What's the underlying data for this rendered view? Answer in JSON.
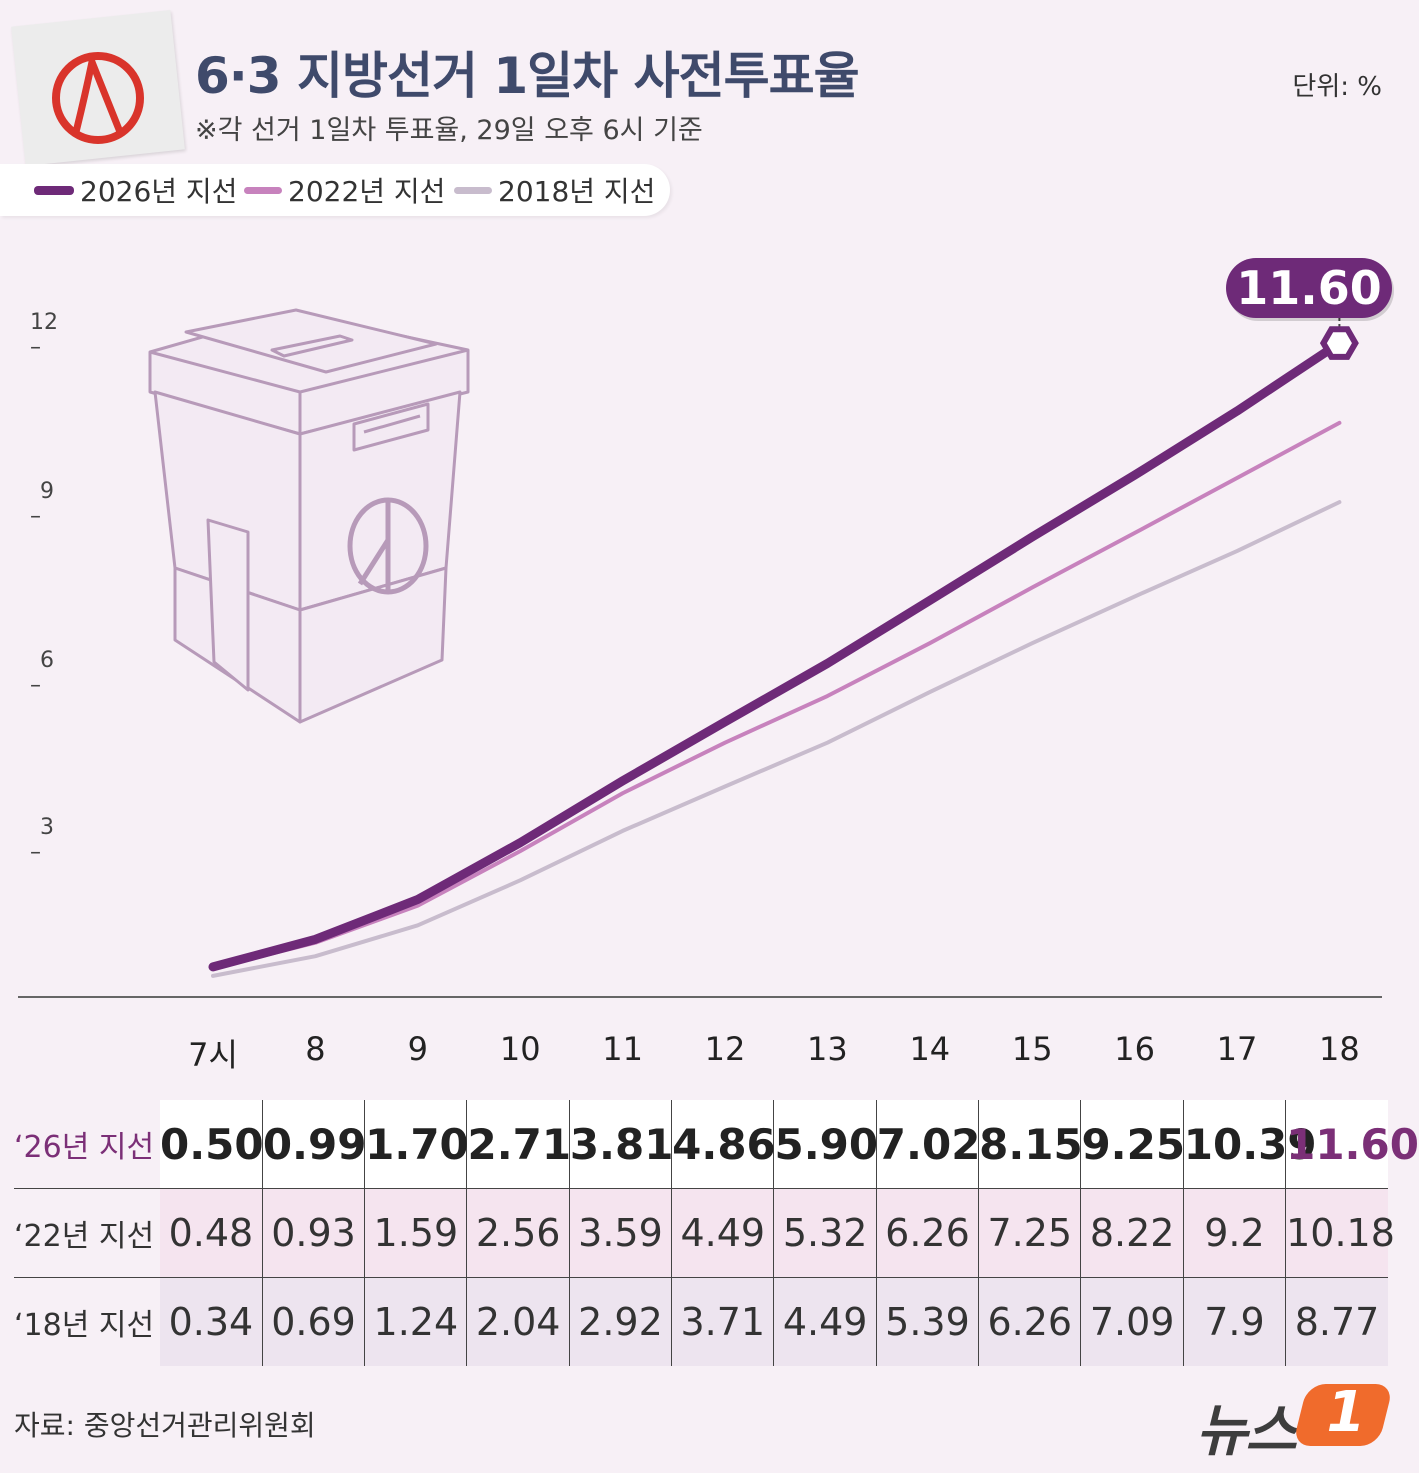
{
  "title": "6·3 지방선거 1일차 사전투표율",
  "subtitle": "※각 선거 1일차 투표율, 29일 오후 6시 기준",
  "unit": "단위: %",
  "legend": [
    {
      "label": "2026년 지선",
      "color": "#6e2a78"
    },
    {
      "label": "2022년 지선",
      "color": "#c782bd"
    },
    {
      "label": "2018년 지선",
      "color": "#c8bccd"
    }
  ],
  "callout": "11.60",
  "chart_data": {
    "type": "line",
    "x": [
      "7시",
      "8",
      "9",
      "10",
      "11",
      "12",
      "13",
      "14",
      "15",
      "16",
      "17",
      "18"
    ],
    "y_ticks": [
      "12",
      "9",
      "6",
      "3"
    ],
    "ylim": [
      0,
      12
    ],
    "series": [
      {
        "name": "2026년 지선",
        "color": "#6e2a78",
        "values": [
          0.5,
          0.99,
          1.7,
          2.71,
          3.81,
          4.86,
          5.9,
          7.02,
          8.15,
          9.25,
          10.39,
          11.6
        ]
      },
      {
        "name": "2022년 지선",
        "color": "#c782bd",
        "values": [
          0.48,
          0.93,
          1.59,
          2.56,
          3.59,
          4.49,
          5.32,
          6.26,
          7.25,
          8.22,
          9.2,
          10.18
        ]
      },
      {
        "name": "2018년 지선",
        "color": "#c8bccd",
        "values": [
          0.34,
          0.69,
          1.24,
          2.04,
          2.92,
          3.71,
          4.49,
          5.39,
          6.26,
          7.09,
          7.9,
          8.77
        ]
      }
    ]
  },
  "table": {
    "rows": [
      {
        "label": "‘26년 지선",
        "values": [
          "0.50",
          "0.99",
          "1.70",
          "2.71",
          "3.81",
          "4.86",
          "5.90",
          "7.02",
          "8.15",
          "9.25",
          "10.39",
          "11.60"
        ]
      },
      {
        "label": "‘22년 지선",
        "values": [
          "0.48",
          "0.93",
          "1.59",
          "2.56",
          "3.59",
          "4.49",
          "5.32",
          "6.26",
          "7.25",
          "8.22",
          "9.2",
          "10.18"
        ]
      },
      {
        "label": "‘18년 지선",
        "values": [
          "0.34",
          "0.69",
          "1.24",
          "2.04",
          "2.92",
          "3.71",
          "4.49",
          "5.39",
          "6.26",
          "7.09",
          "7.9",
          "8.77"
        ]
      }
    ]
  },
  "source": "자료: 중앙선거관리위원회",
  "brand": {
    "text": "뉴스",
    "badge": "1",
    "badge_color": "#f06b2c"
  }
}
